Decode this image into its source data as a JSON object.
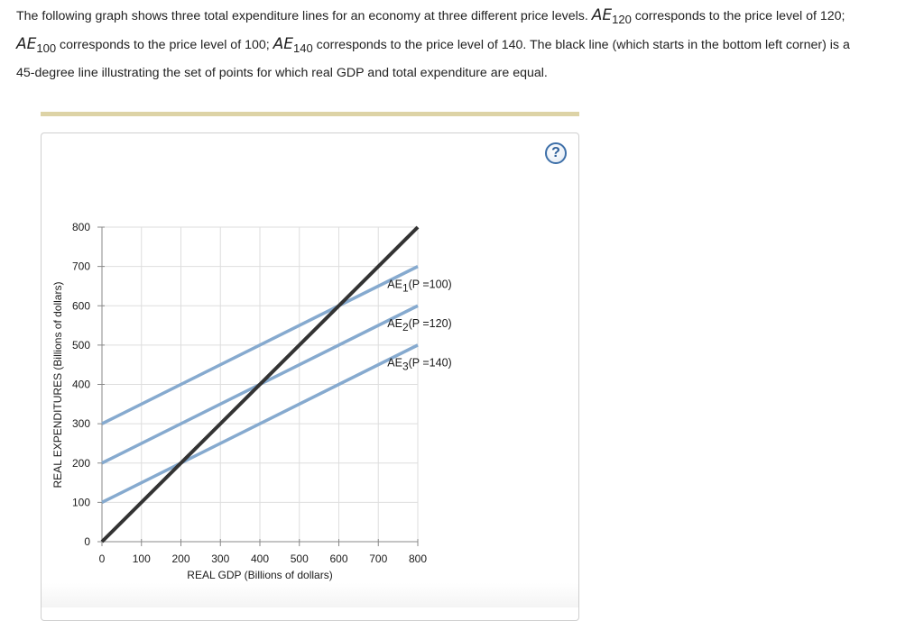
{
  "prompt": {
    "intro": "The following graph shows three total expenditure lines for an economy at three different price levels.",
    "ae_symbol": "AE",
    "ae120_sub": "120",
    "ae120_text": "corresponds to the price level of 120;",
    "ae100_sub": "100",
    "ae100_text": "corresponds to the price level of 100;",
    "ae140_sub": "140",
    "ae140_text": "corresponds to the price level of 140. The black line (which starts in the bottom left corner) is a",
    "line3": "45-degree line illustrating the set of points for which real GDP and total expenditure are equal."
  },
  "help_button": {
    "label": "?"
  },
  "colors": {
    "ae_lines": "#86aacf",
    "line_45": "#333333",
    "grid": "#dedede",
    "axis": "#888888",
    "help": "#3d6fa8"
  },
  "chart_data": {
    "type": "line",
    "xlabel": "REAL GDP (Billions of dollars)",
    "ylabel": "REAL EXPENDITURES (Billions of dollars)",
    "xlim": [
      0,
      800
    ],
    "ylim": [
      0,
      800
    ],
    "x_ticks": [
      0,
      100,
      200,
      300,
      400,
      500,
      600,
      700,
      800
    ],
    "y_ticks": [
      0,
      100,
      200,
      300,
      400,
      500,
      600,
      700,
      800
    ],
    "grid": true,
    "series": [
      {
        "name": "45-degree line",
        "color": "#333333",
        "x": [
          0,
          800
        ],
        "y": [
          0,
          800
        ]
      },
      {
        "label": "AE",
        "subscript": "1",
        "price": "(P =100)",
        "color": "#86aacf",
        "x": [
          0,
          800
        ],
        "y": [
          300,
          700
        ]
      },
      {
        "label": "AE",
        "subscript": "2",
        "price": "(P =120)",
        "color": "#86aacf",
        "x": [
          0,
          800
        ],
        "y": [
          200,
          600
        ]
      },
      {
        "label": "AE",
        "subscript": "3",
        "price": "(P =140)",
        "color": "#86aacf",
        "x": [
          0,
          800
        ],
        "y": [
          100,
          500
        ]
      }
    ]
  }
}
